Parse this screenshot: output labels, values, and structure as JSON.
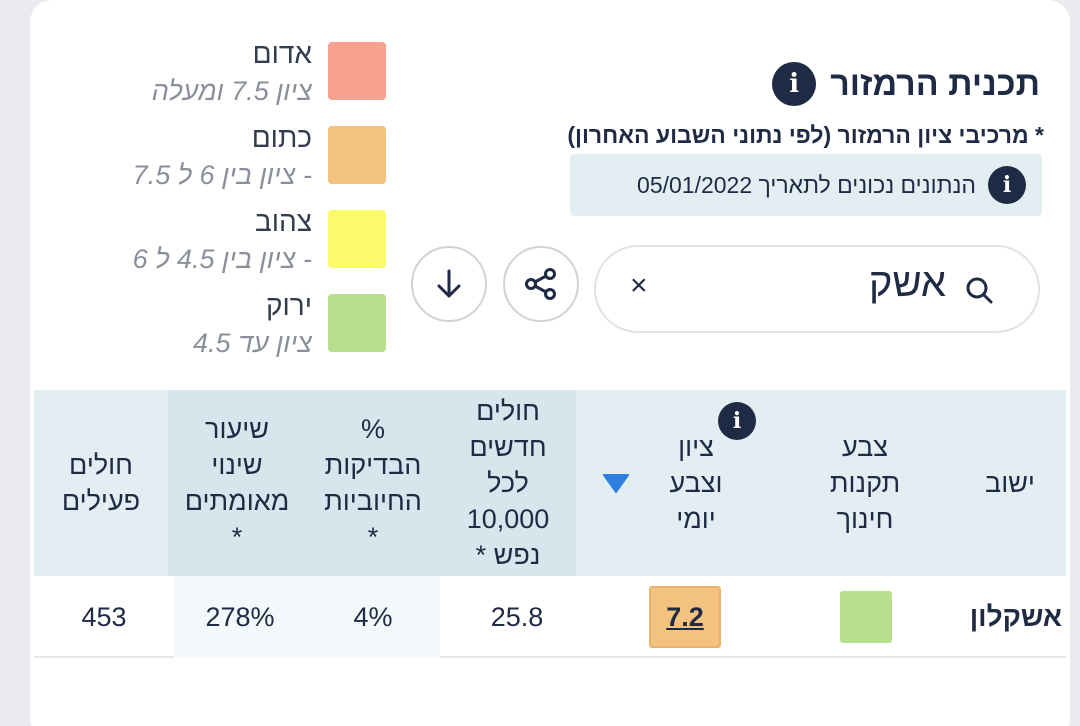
{
  "legend": [
    {
      "name": "אדום",
      "desc": "ציון 7.5 ומעלה",
      "color": "#f7a190"
    },
    {
      "name": "כתום",
      "desc": "ציון בין 6 ל 7.5 -",
      "color": "#f2c27e"
    },
    {
      "name": "צהוב",
      "desc": "ציון בין 4.5 ל 6 -",
      "color": "#fafa6a"
    },
    {
      "name": "ירוק",
      "desc": "ציון עד 4.5",
      "color": "#b8df8e"
    }
  ],
  "header": {
    "title": "תכנית הרמזור",
    "info_icon": "i",
    "subtitle": "* מרכיבי ציון הרמזור (לפי נתוני השבוע האחרון)",
    "date_note": "הנתונים נכונים לתאריך 05/01/2022"
  },
  "search": {
    "value": "אשק",
    "clear": "×"
  },
  "table": {
    "headers": {
      "city": "ישוב",
      "edu_color": "צבע\nתקנות\nחינוך",
      "daily_score": "ציון\nוצבע\nיומי",
      "new_cases": "חולים\nחדשים\nלכל\n10,000\n* נפש",
      "positive_pct": "%\nהבדיקות\nהחיוביות\n*",
      "change_rate": "שיעור\nשינוי\nמאומתים\n*",
      "active": "חולים\nפעילים"
    },
    "rows": [
      {
        "city": "אשקלון",
        "edu_color": "#b8df8e",
        "daily_score": "7.2",
        "daily_color": "#f2c27e",
        "new_cases": "25.8",
        "positive_pct": "4%",
        "change_rate": "278%",
        "active": "453"
      }
    ]
  },
  "colors": {
    "accent_blue": "#2f7fe3",
    "dark_navy": "#1f2a44"
  }
}
